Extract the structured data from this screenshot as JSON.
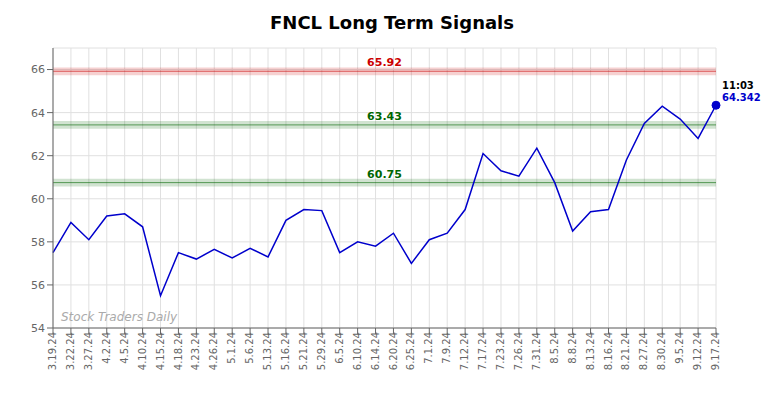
{
  "chart_data": {
    "type": "line",
    "title": "FNCL Long Term Signals",
    "categories": [
      "3.19.24",
      "3.22.24",
      "3.27.24",
      "4.2.24",
      "4.5.24",
      "4.10.24",
      "4.15.24",
      "4.18.24",
      "4.23.24",
      "4.26.24",
      "5.1.24",
      "5.6.24",
      "5.13.24",
      "5.16.24",
      "5.21.24",
      "5.29.24",
      "6.5.24",
      "6.10.24",
      "6.14.24",
      "6.20.24",
      "6.25.24",
      "7.1.24",
      "7.9.24",
      "7.12.24",
      "7.17.24",
      "7.23.24",
      "7.26.24",
      "7.31.24",
      "8.5.24",
      "8.8.24",
      "8.13.24",
      "8.16.24",
      "8.21.24",
      "8.27.24",
      "8.30.24",
      "9.5.24",
      "9.12.24",
      "9.17.24"
    ],
    "values": [
      57.5,
      58.9,
      58.1,
      59.2,
      59.3,
      58.7,
      55.5,
      57.5,
      57.2,
      57.65,
      57.25,
      57.7,
      57.3,
      59.0,
      59.5,
      59.45,
      57.5,
      58.0,
      57.8,
      58.4,
      57.0,
      58.1,
      58.4,
      59.5,
      62.1,
      61.3,
      61.05,
      62.35,
      60.75,
      58.5,
      59.4,
      59.5,
      61.8,
      63.5,
      64.3,
      63.7,
      62.8,
      64.342
    ],
    "color": "#0000cc",
    "ylim": [
      54,
      67
    ],
    "yticks": [
      54,
      56,
      58,
      60,
      62,
      64,
      66
    ],
    "grid": true,
    "reference_lines": [
      {
        "value": 65.92,
        "label": "65.92",
        "color": "#cc0000"
      },
      {
        "value": 63.43,
        "label": "63.43",
        "color": "#006600"
      },
      {
        "value": 60.75,
        "label": "60.75",
        "color": "#006600"
      }
    ],
    "annotations": [
      {
        "text": "11:03",
        "color": "#000000"
      },
      {
        "text": "64.342",
        "color": "#0000cc"
      }
    ],
    "watermark": "Stock Traders Daily"
  }
}
